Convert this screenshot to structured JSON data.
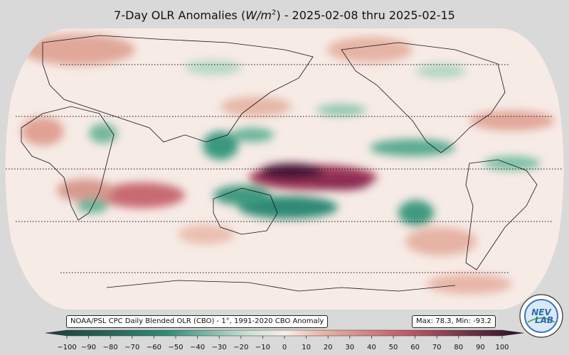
{
  "title": {
    "prefix": "7-Day OLR Anomalies (",
    "unit_base": "W/m",
    "unit_exp": "2",
    "suffix": ") - 2025-02-08 thru 2025-02-15"
  },
  "credit_text": "NOAA/PSL CPC Daily Blended OLR (CBO) - 1°, 1991-2020 CBO Anomaly",
  "stats_text": "Max: 78.3,  Min: -93.2",
  "logo": {
    "name": "nev-lab-logo",
    "text_top": "NEV",
    "text_bottom": "LAB"
  },
  "colorbar": {
    "min": -100,
    "max": 100,
    "ticks": [
      "−100",
      "−90",
      "−80",
      "−70",
      "−60",
      "−50",
      "−40",
      "−30",
      "−20",
      "−10",
      "0",
      "10",
      "20",
      "30",
      "40",
      "50",
      "60",
      "70",
      "80",
      "90",
      "100"
    ],
    "colors": {
      "neg_strong": "#1f3b3a",
      "neg_mid": "#2e8b78",
      "neg_light": "#c6e0d0",
      "neutral": "#f8efeb",
      "pos_light": "#e8b4a4",
      "pos_mid": "#c25c6a",
      "pos_strong": "#2a0e26"
    }
  },
  "map": {
    "projection": "robinson",
    "parallels_dotted": true,
    "colors": {
      "ocean_base": "#f7ebe6",
      "coast": "#111111",
      "frame_bg": "#d9d9d9"
    }
  }
}
